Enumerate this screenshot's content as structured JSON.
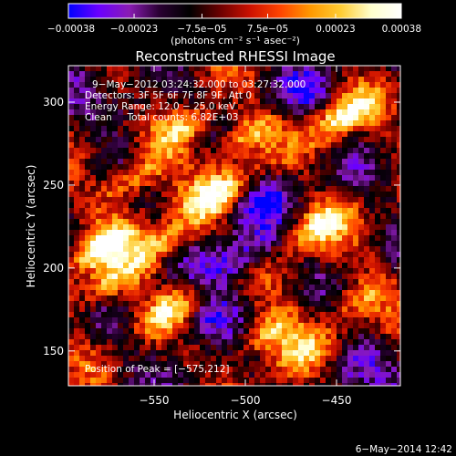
{
  "chart_data": {
    "type": "heatmap",
    "title": "Reconstructed RHESSI Image",
    "xlabel": "Heliocentric X (arcsec)",
    "ylabel": "Heliocentric Y (arcsec)",
    "xlim": [
      -597,
      -415
    ],
    "ylim": [
      129,
      322
    ],
    "xticks": [
      -550,
      -500,
      -450
    ],
    "xtick_labels": [
      "−550",
      "−500",
      "−450"
    ],
    "yticks": [
      150,
      200,
      250,
      300
    ],
    "ytick_labels": [
      "150",
      "200",
      "250",
      "300"
    ],
    "colorbar": {
      "range": [
        -0.00038,
        0.00038
      ],
      "tick_values": [
        -0.00038,
        -0.00023,
        -7.5e-05,
        7.5e-05,
        0.00023,
        0.00038
      ],
      "tick_labels": [
        "−0.00038",
        "−0.00023",
        "−7.5e−05",
        "7.5e−05",
        "0.00023",
        "0.00038"
      ],
      "units_label": "(photons cm⁻² s⁻¹ asec⁻²)",
      "colors": [
        "#0000ff",
        "#6a00ff",
        "#8a1cb4",
        "#2a0033",
        "#000000",
        "#6a0000",
        "#cc1100",
        "#ff4400",
        "#ff9900",
        "#ffcc33",
        "#ffffcc",
        "#ffffff"
      ]
    },
    "annotations": [
      "9−May−2012 03:24:32.000 to 03:27:32.000",
      "Detectors: 3F 5F 6F 7F 8F 9F, Att 0",
      "Energy Range: 12.0 − 25.0 keV",
      "Clean     Total counts: 6.82E+03"
    ],
    "peak_label": "Position of Peak = [−575,212]",
    "peak": [
      -575,
      212
    ],
    "footer_date": "6−May−2014 12:42",
    "bright_sources": [
      {
        "x": -578,
        "y": 212,
        "strength": 1.0
      },
      {
        "x": -575,
        "y": 190,
        "strength": 0.8
      },
      {
        "x": -560,
        "y": 255,
        "strength": 0.85
      },
      {
        "x": -545,
        "y": 215,
        "strength": 0.75
      },
      {
        "x": -540,
        "y": 175,
        "strength": 0.7
      },
      {
        "x": -532,
        "y": 285,
        "strength": 0.85
      },
      {
        "x": -515,
        "y": 245,
        "strength": 0.95
      },
      {
        "x": -500,
        "y": 280,
        "strength": 0.7
      },
      {
        "x": -488,
        "y": 160,
        "strength": 0.8
      },
      {
        "x": -460,
        "y": 225,
        "strength": 0.9
      },
      {
        "x": -448,
        "y": 290,
        "strength": 0.95
      },
      {
        "x": -440,
        "y": 180,
        "strength": 0.6
      },
      {
        "x": -470,
        "y": 150,
        "strength": 0.55
      }
    ],
    "dim_sources": [
      {
        "x": -505,
        "y": 205,
        "strength": 0.9
      },
      {
        "x": -520,
        "y": 170,
        "strength": 0.7
      },
      {
        "x": -490,
        "y": 240,
        "strength": 0.6
      },
      {
        "x": -560,
        "y": 300,
        "strength": 0.5
      },
      {
        "x": -470,
        "y": 305,
        "strength": 0.5
      },
      {
        "x": -445,
        "y": 140,
        "strength": 0.5
      }
    ]
  }
}
